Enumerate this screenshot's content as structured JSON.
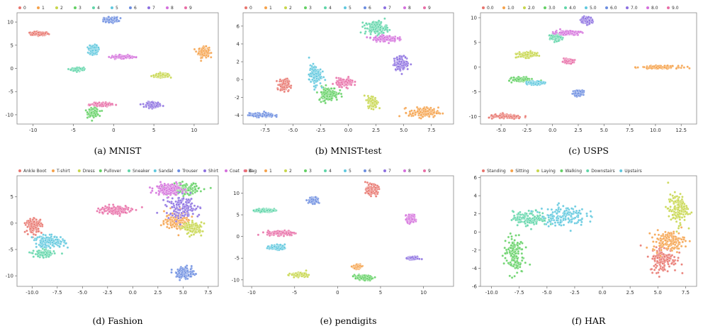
{
  "palette": [
    "#e8746d",
    "#f5a24b",
    "#c7d64b",
    "#63d064",
    "#5fd5a8",
    "#5fc8de",
    "#6b8de0",
    "#8c6fe0",
    "#d46fdc",
    "#e86da6"
  ],
  "chart_data": [
    {
      "type": "scatter",
      "caption": "(a) MNIST",
      "legend": [
        "0",
        "1",
        "2",
        "3",
        "4",
        "5",
        "6",
        "7",
        "8",
        "9"
      ],
      "xlim": [
        -12,
        13
      ],
      "ylim": [
        -12,
        12
      ],
      "xticks": [
        -10,
        -5,
        0,
        5,
        10
      ],
      "yticks": [
        -10,
        -5,
        0,
        5,
        10
      ],
      "clusters": [
        {
          "label": "0",
          "x": -9.2,
          "y": 7.5,
          "sx": 1.0,
          "sy": 0.35
        },
        {
          "label": "1",
          "x": 11.2,
          "y": 3.5,
          "sx": 0.6,
          "sy": 1.0
        },
        {
          "label": "2",
          "x": 6.0,
          "y": -1.5,
          "sx": 0.9,
          "sy": 0.35
        },
        {
          "label": "3",
          "x": -2.5,
          "y": -9.5,
          "sx": 0.6,
          "sy": 0.8
        },
        {
          "label": "4",
          "x": -4.5,
          "y": -0.2,
          "sx": 0.7,
          "sy": 0.35
        },
        {
          "label": "5",
          "x": -2.5,
          "y": 4.0,
          "sx": 0.5,
          "sy": 0.9
        },
        {
          "label": "6",
          "x": -0.3,
          "y": 10.5,
          "sx": 0.8,
          "sy": 0.5
        },
        {
          "label": "7",
          "x": 5.0,
          "y": -7.8,
          "sx": 0.8,
          "sy": 0.5
        },
        {
          "label": "8",
          "x": 1.0,
          "y": 2.5,
          "sx": 1.2,
          "sy": 0.3
        },
        {
          "label": "9",
          "x": -1.5,
          "y": -7.8,
          "sx": 1.1,
          "sy": 0.3
        }
      ]
    },
    {
      "type": "scatter",
      "caption": "(b) MNIST-test",
      "legend": [
        "0",
        "1",
        "2",
        "3",
        "4",
        "5",
        "6",
        "7",
        "8",
        "9"
      ],
      "xlim": [
        -9.5,
        9.5
      ],
      "ylim": [
        -5,
        7.5
      ],
      "xticks": [
        -7.5,
        -5.0,
        -2.5,
        0.0,
        2.5,
        5.0,
        7.5
      ],
      "yticks": [
        -4,
        -2,
        0,
        2,
        4,
        6
      ],
      "clusters": [
        {
          "label": "0",
          "x": -5.8,
          "y": -0.6,
          "sx": 0.4,
          "sy": 0.6
        },
        {
          "label": "1",
          "x": 6.8,
          "y": -3.7,
          "sx": 1.2,
          "sy": 0.5
        },
        {
          "label": "2",
          "x": 2.2,
          "y": -2.5,
          "sx": 0.4,
          "sy": 0.6
        },
        {
          "label": "3",
          "x": -1.8,
          "y": -1.6,
          "sx": 0.8,
          "sy": 0.7
        },
        {
          "label": "4",
          "x": 2.5,
          "y": 5.8,
          "sx": 0.9,
          "sy": 0.7
        },
        {
          "label": "5",
          "x": -3.0,
          "y": 0.5,
          "sx": 0.5,
          "sy": 1.0
        },
        {
          "label": "6",
          "x": -7.8,
          "y": -4.0,
          "sx": 1.0,
          "sy": 0.2
        },
        {
          "label": "7",
          "x": 4.8,
          "y": 1.8,
          "sx": 0.6,
          "sy": 0.7
        },
        {
          "label": "8",
          "x": 3.3,
          "y": 4.6,
          "sx": 1.0,
          "sy": 0.3
        },
        {
          "label": "9",
          "x": -0.3,
          "y": -0.3,
          "sx": 0.7,
          "sy": 0.4
        }
      ]
    },
    {
      "type": "scatter",
      "caption": "(c) USPS",
      "legend": [
        "0.0",
        "1.0",
        "2.0",
        "3.0",
        "4.0",
        "5.0",
        "6.0",
        "7.0",
        "8.0",
        "9.0"
      ],
      "xlim": [
        -7,
        14
      ],
      "ylim": [
        -11.5,
        11
      ],
      "xticks": [
        -5.0,
        -2.5,
        0.0,
        2.5,
        5.0,
        7.5,
        10.0,
        12.5
      ],
      "yticks": [
        -10,
        -5,
        0,
        5,
        10
      ],
      "clusters": [
        {
          "label": "0.0",
          "x": -4.5,
          "y": -10.0,
          "sx": 1.5,
          "sy": 0.4
        },
        {
          "label": "1.0",
          "x": 10.5,
          "y": 0.0,
          "sx": 1.6,
          "sy": 0.25
        },
        {
          "label": "2.0",
          "x": -2.5,
          "y": 2.5,
          "sx": 0.8,
          "sy": 0.5
        },
        {
          "label": "3.0",
          "x": -3.0,
          "y": -2.5,
          "sx": 0.8,
          "sy": 0.4
        },
        {
          "label": "4.0",
          "x": 0.3,
          "y": 6.0,
          "sx": 0.5,
          "sy": 0.6
        },
        {
          "label": "5.0",
          "x": -1.7,
          "y": -3.2,
          "sx": 0.7,
          "sy": 0.3
        },
        {
          "label": "6.0",
          "x": 2.5,
          "y": -5.2,
          "sx": 0.4,
          "sy": 0.5
        },
        {
          "label": "7.0",
          "x": 3.3,
          "y": 9.5,
          "sx": 0.5,
          "sy": 0.6
        },
        {
          "label": "8.0",
          "x": 1.5,
          "y": 7.0,
          "sx": 1.1,
          "sy": 0.4
        },
        {
          "label": "9.0",
          "x": 1.5,
          "y": 1.2,
          "sx": 0.5,
          "sy": 0.35
        }
      ]
    },
    {
      "type": "scatter",
      "caption": "(d) Fashion",
      "legend": [
        "Ankle Boot",
        "T-shirt",
        "Dress",
        "Pullover",
        "Sneaker",
        "Sandal",
        "Trouser",
        "Shirt",
        "Coat",
        "Bag"
      ],
      "xlim": [
        -11.5,
        8.5
      ],
      "ylim": [
        -12,
        9
      ],
      "xticks": [
        -10.0,
        -7.5,
        -5.0,
        -2.5,
        0.0,
        2.5,
        5.0,
        7.5
      ],
      "yticks": [
        -10,
        -5,
        0,
        5
      ],
      "clusters": [
        {
          "label": "Ankle Boot",
          "x": -9.8,
          "y": -0.5,
          "sx": 0.7,
          "sy": 1.2
        },
        {
          "label": "T-shirt",
          "x": 4.5,
          "y": 0.5,
          "sx": 1.2,
          "sy": 1.5
        },
        {
          "label": "Dress",
          "x": 6.0,
          "y": -1.0,
          "sx": 0.8,
          "sy": 1.0
        },
        {
          "label": "Pullover",
          "x": 5.0,
          "y": 6.5,
          "sx": 1.4,
          "sy": 1.0
        },
        {
          "label": "Sneaker",
          "x": -8.8,
          "y": -5.8,
          "sx": 0.9,
          "sy": 0.6
        },
        {
          "label": "Sandal",
          "x": -8.3,
          "y": -3.5,
          "sx": 1.4,
          "sy": 1.0
        },
        {
          "label": "Trouser",
          "x": 5.2,
          "y": -9.5,
          "sx": 0.8,
          "sy": 1.0
        },
        {
          "label": "Shirt",
          "x": 5.0,
          "y": 3.0,
          "sx": 1.5,
          "sy": 2.0
        },
        {
          "label": "Coat",
          "x": 3.5,
          "y": 6.5,
          "sx": 1.2,
          "sy": 1.0
        },
        {
          "label": "Bag",
          "x": -1.8,
          "y": 2.5,
          "sx": 1.5,
          "sy": 0.8
        }
      ]
    },
    {
      "type": "scatter",
      "caption": "(e) pendigits",
      "legend": [
        "0",
        "1",
        "2",
        "3",
        "4",
        "5",
        "6",
        "7",
        "8",
        "9"
      ],
      "xlim": [
        -11,
        13.5
      ],
      "ylim": [
        -11.5,
        14
      ],
      "xticks": [
        -10,
        -5,
        0,
        5,
        10
      ],
      "yticks": [
        -10,
        -5,
        0,
        5,
        10
      ],
      "clusters": [
        {
          "label": "0",
          "x": 4.0,
          "y": 10.8,
          "sx": 0.6,
          "sy": 1.0
        },
        {
          "label": "1",
          "x": 2.3,
          "y": -7.0,
          "sx": 0.4,
          "sy": 0.4
        },
        {
          "label": "2",
          "x": -4.5,
          "y": -8.8,
          "sx": 0.8,
          "sy": 0.4
        },
        {
          "label": "3",
          "x": 3.0,
          "y": -9.5,
          "sx": 0.9,
          "sy": 0.5
        },
        {
          "label": "4",
          "x": -8.5,
          "y": 6.0,
          "sx": 1.0,
          "sy": 0.3
        },
        {
          "label": "5",
          "x": -7.0,
          "y": -2.5,
          "sx": 0.8,
          "sy": 0.5
        },
        {
          "label": "6",
          "x": -2.8,
          "y": 8.3,
          "sx": 0.5,
          "sy": 0.6
        },
        {
          "label": "7",
          "x": 8.8,
          "y": -5.0,
          "sx": 0.6,
          "sy": 0.3
        },
        {
          "label": "8",
          "x": 8.5,
          "y": 4.0,
          "sx": 0.4,
          "sy": 0.9
        },
        {
          "label": "9",
          "x": -6.5,
          "y": 0.8,
          "sx": 1.5,
          "sy": 0.5
        }
      ]
    },
    {
      "type": "scatter",
      "caption": "(f) HAR",
      "legend": [
        "Standing",
        "Sitting",
        "Laying",
        "Walking",
        "Downstairs",
        "Upstairs"
      ],
      "xlim": [
        -11,
        8.5
      ],
      "ylim": [
        -6,
        6.2
      ],
      "xticks": [
        -10.0,
        -7.5,
        -5.0,
        -2.5,
        0.0,
        2.5,
        5.0,
        7.5
      ],
      "yticks": [
        -6,
        -4,
        -2,
        0,
        2,
        4,
        6
      ],
      "clusters": [
        {
          "label": "Standing",
          "x": 5.5,
          "y": -3.0,
          "sx": 1.1,
          "sy": 1.3
        },
        {
          "label": "Sitting",
          "x": 6.0,
          "y": -1.0,
          "sx": 1.3,
          "sy": 1.0
        },
        {
          "label": "Laying",
          "x": 6.8,
          "y": 2.5,
          "sx": 0.8,
          "sy": 1.5
        },
        {
          "label": "Walking",
          "x": -8.0,
          "y": -2.5,
          "sx": 0.8,
          "sy": 2.0
        },
        {
          "label": "Downstairs",
          "x": -6.5,
          "y": 1.5,
          "sx": 1.4,
          "sy": 0.7
        },
        {
          "label": "Upstairs",
          "x": -3.5,
          "y": 1.8,
          "sx": 1.8,
          "sy": 1.0
        }
      ]
    }
  ]
}
